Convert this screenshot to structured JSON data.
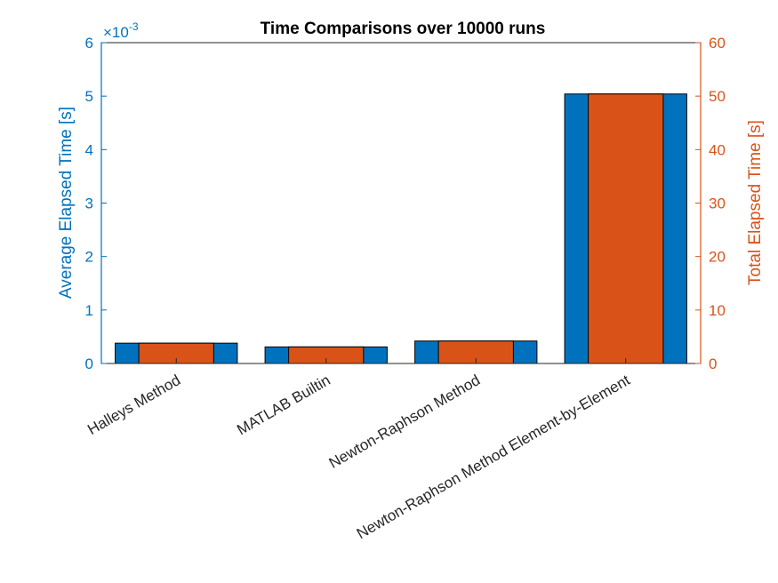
{
  "chart_data": {
    "type": "bar",
    "title": "Time Comparisons over 10000 runs",
    "categories": [
      "Halleys Method",
      "MATLAB Builtin",
      "Newton-Raphson Method",
      "Newton-Raphson Method Element-by-Element"
    ],
    "series": [
      {
        "axis": "left",
        "color": "#0072BD",
        "values": [
          0.00038,
          0.00031,
          0.00042,
          0.00504
        ]
      },
      {
        "axis": "right",
        "color": "#D95319",
        "values": [
          3.8,
          3.1,
          4.2,
          50.4
        ]
      }
    ],
    "y_left": {
      "label": "Average Elapsed Time [s]",
      "exponent_base": "×10",
      "exponent_power": "-3",
      "ylim": [
        0,
        0.006
      ],
      "ticks": [
        "0",
        "1",
        "2",
        "3",
        "4",
        "5",
        "6"
      ],
      "color": "#0072BD"
    },
    "y_right": {
      "label": "Total Elapsed Time [s]",
      "ylim": [
        0,
        60
      ],
      "ticks": [
        "0",
        "10",
        "20",
        "30",
        "40",
        "50",
        "60"
      ],
      "color": "#D95319"
    },
    "grid": false,
    "legend": "none"
  }
}
